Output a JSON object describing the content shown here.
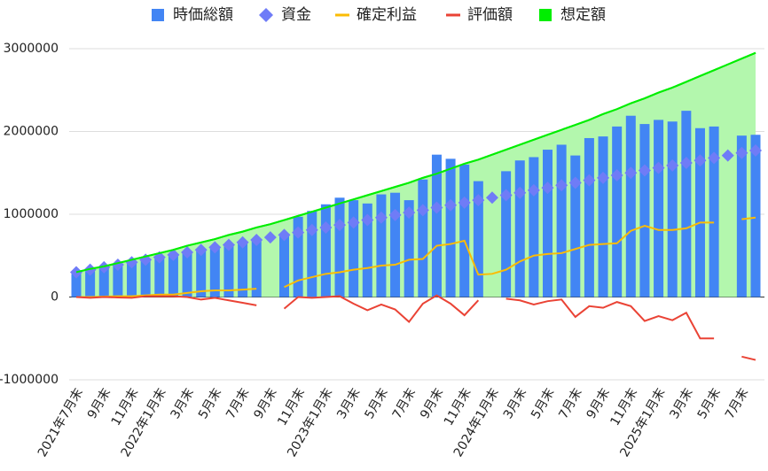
{
  "chart_data": {
    "type": "combo",
    "categories": [
      "2021年7月末",
      null,
      "9月末",
      null,
      "11月末",
      null,
      "2022年1月末",
      null,
      "3月末",
      null,
      "5月末",
      null,
      "7月末",
      null,
      "9月末",
      null,
      "11月末",
      null,
      "2023年1月末",
      null,
      "3月末",
      null,
      "5月末",
      null,
      "7月末",
      null,
      "9月末",
      null,
      "11月末",
      null,
      "2024年1月末",
      null,
      "3月末",
      null,
      "5月末",
      null,
      "7月末",
      null,
      "9月末",
      null,
      "11月末",
      null,
      "2025年1月末",
      null,
      "3月末",
      null,
      "5月末",
      null,
      "7月末",
      null
    ],
    "series": [
      {
        "name": "時価総額",
        "type": "bar",
        "color": "#4285f4",
        "values": [
          280000,
          310000,
          350000,
          380000,
          420000,
          450000,
          490000,
          520000,
          550000,
          570000,
          610000,
          640000,
          670000,
          690000,
          null,
          760000,
          970000,
          1040000,
          1120000,
          1200000,
          1170000,
          1130000,
          1240000,
          1260000,
          1170000,
          1420000,
          1720000,
          1670000,
          1600000,
          1400000,
          null,
          1520000,
          1650000,
          1690000,
          1780000,
          1840000,
          1710000,
          1920000,
          1940000,
          2060000,
          2190000,
          2090000,
          2140000,
          2120000,
          2250000,
          2040000,
          2060000,
          null,
          1950000,
          1960000
        ]
      },
      {
        "name": "資金",
        "type": "scatter",
        "color": "#6f7cf7",
        "values": [
          300000,
          330000,
          360000,
          390000,
          420000,
          450000,
          480000,
          510000,
          540000,
          570000,
          600000,
          630000,
          660000,
          690000,
          720000,
          750000,
          780000,
          810000,
          840000,
          870000,
          900000,
          930000,
          960000,
          990000,
          1020000,
          1050000,
          1080000,
          1110000,
          1140000,
          1170000,
          1200000,
          1230000,
          1260000,
          1290000,
          1320000,
          1350000,
          1380000,
          1410000,
          1440000,
          1470000,
          1500000,
          1530000,
          1560000,
          1590000,
          1620000,
          1650000,
          1680000,
          1710000,
          1740000,
          1770000
        ]
      },
      {
        "name": "確定利益",
        "type": "line",
        "color": "#fbbc04",
        "values": [
          0,
          0,
          5000,
          10000,
          10000,
          20000,
          30000,
          30000,
          50000,
          70000,
          80000,
          80000,
          90000,
          100000,
          null,
          120000,
          200000,
          240000,
          280000,
          300000,
          330000,
          350000,
          380000,
          390000,
          450000,
          460000,
          620000,
          640000,
          680000,
          270000,
          280000,
          330000,
          430000,
          500000,
          520000,
          530000,
          580000,
          630000,
          640000,
          650000,
          800000,
          860000,
          810000,
          810000,
          830000,
          900000,
          900000,
          null,
          940000,
          960000
        ]
      },
      {
        "name": "評価額",
        "type": "line",
        "color": "#ea4335",
        "values": [
          0,
          -10000,
          0,
          -5000,
          -10000,
          10000,
          10000,
          10000,
          0,
          -30000,
          -10000,
          -40000,
          -70000,
          -100000,
          null,
          -140000,
          0,
          -10000,
          0,
          10000,
          -80000,
          -160000,
          -90000,
          -150000,
          -300000,
          -80000,
          20000,
          -80000,
          -220000,
          -40000,
          null,
          -20000,
          -40000,
          -90000,
          -50000,
          -30000,
          -240000,
          -110000,
          -130000,
          -60000,
          -110000,
          -290000,
          -230000,
          -280000,
          -190000,
          -500000,
          -500000,
          null,
          -720000,
          -760000
        ]
      },
      {
        "name": "想定額",
        "type": "area",
        "color": "#00ee00",
        "fill_color": "#b3f7ad",
        "values": [
          300000,
          340000,
          370000,
          410000,
          450000,
          490000,
          530000,
          570000,
          620000,
          660000,
          700000,
          750000,
          790000,
          840000,
          880000,
          930000,
          980000,
          1030000,
          1080000,
          1130000,
          1180000,
          1230000,
          1280000,
          1330000,
          1380000,
          1440000,
          1490000,
          1550000,
          1610000,
          1660000,
          1720000,
          1780000,
          1840000,
          1900000,
          1960000,
          2020000,
          2080000,
          2140000,
          2210000,
          2270000,
          2340000,
          2400000,
          2470000,
          2530000,
          2600000,
          2670000,
          2740000,
          2810000,
          2880000,
          2950000
        ]
      }
    ],
    "ylim": [
      -1000000,
      3000000
    ],
    "yticks": [
      -1000000,
      0,
      1000000,
      2000000,
      3000000
    ],
    "grid": true
  }
}
